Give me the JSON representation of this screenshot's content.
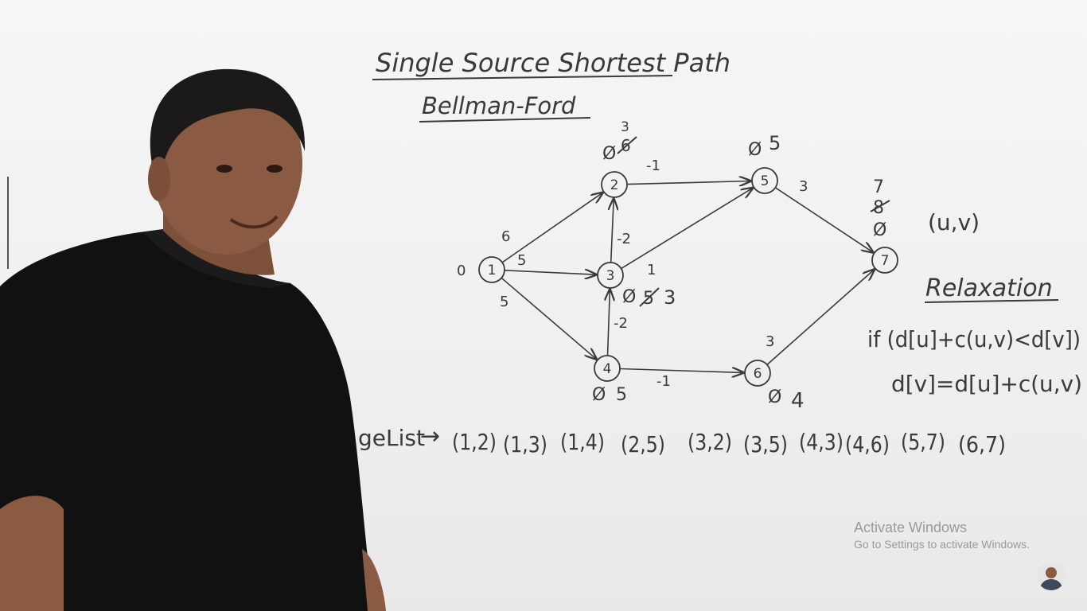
{
  "board": {
    "title": "Single Source Shortest Path",
    "subtitle": "Bellman-Ford"
  },
  "graph": {
    "source_label": "0",
    "nodes": [
      {
        "id": "1"
      },
      {
        "id": "2",
        "labels": [
          "3",
          "Ø",
          "6"
        ]
      },
      {
        "id": "3",
        "labels": [
          "Ø",
          "5",
          "3"
        ]
      },
      {
        "id": "4",
        "labels": [
          "Ø",
          "5"
        ]
      },
      {
        "id": "5",
        "labels": [
          "Ø",
          "5"
        ]
      },
      {
        "id": "6",
        "labels": [
          "Ø",
          "4"
        ]
      },
      {
        "id": "7",
        "labels": [
          "7",
          "8",
          "Ø"
        ]
      }
    ],
    "edges": [
      {
        "from": "1",
        "to": "2",
        "weight": "6"
      },
      {
        "from": "1",
        "to": "3",
        "weight": "5"
      },
      {
        "from": "1",
        "to": "4",
        "weight": "5"
      },
      {
        "from": "2",
        "to": "5",
        "weight": "-1"
      },
      {
        "from": "3",
        "to": "2",
        "weight": "-2"
      },
      {
        "from": "3",
        "to": "5",
        "weight": "1"
      },
      {
        "from": "4",
        "to": "3",
        "weight": "-2"
      },
      {
        "from": "4",
        "to": "6",
        "weight": "-1"
      },
      {
        "from": "5",
        "to": "7",
        "weight": "3"
      },
      {
        "from": "6",
        "to": "7",
        "weight": "3"
      }
    ]
  },
  "notes": {
    "uv": "(u,v)",
    "relaxation_title": "Relaxation",
    "condition": "if (d[u]+c(u,v)<d[v])",
    "update": "d[v]=d[u]+c(u,v)"
  },
  "edge_list": {
    "label": "geList",
    "arrow": "→",
    "items": [
      "(1,2)",
      "(1,3)",
      "(1,4)",
      "(2,5)",
      "(3,2)",
      "(3,5)",
      "(4,3)",
      "(4,6)",
      "(5,7)",
      "(6,7)"
    ]
  },
  "watermark": {
    "title": "Activate Windows",
    "subtitle": "Go to Settings to activate Windows."
  },
  "colors": {
    "marker": "#3a3a3a",
    "board": "#f1f2f2",
    "shirt": "#111111",
    "skin": "#8a5a43",
    "watermark": "#9a9a9a"
  }
}
